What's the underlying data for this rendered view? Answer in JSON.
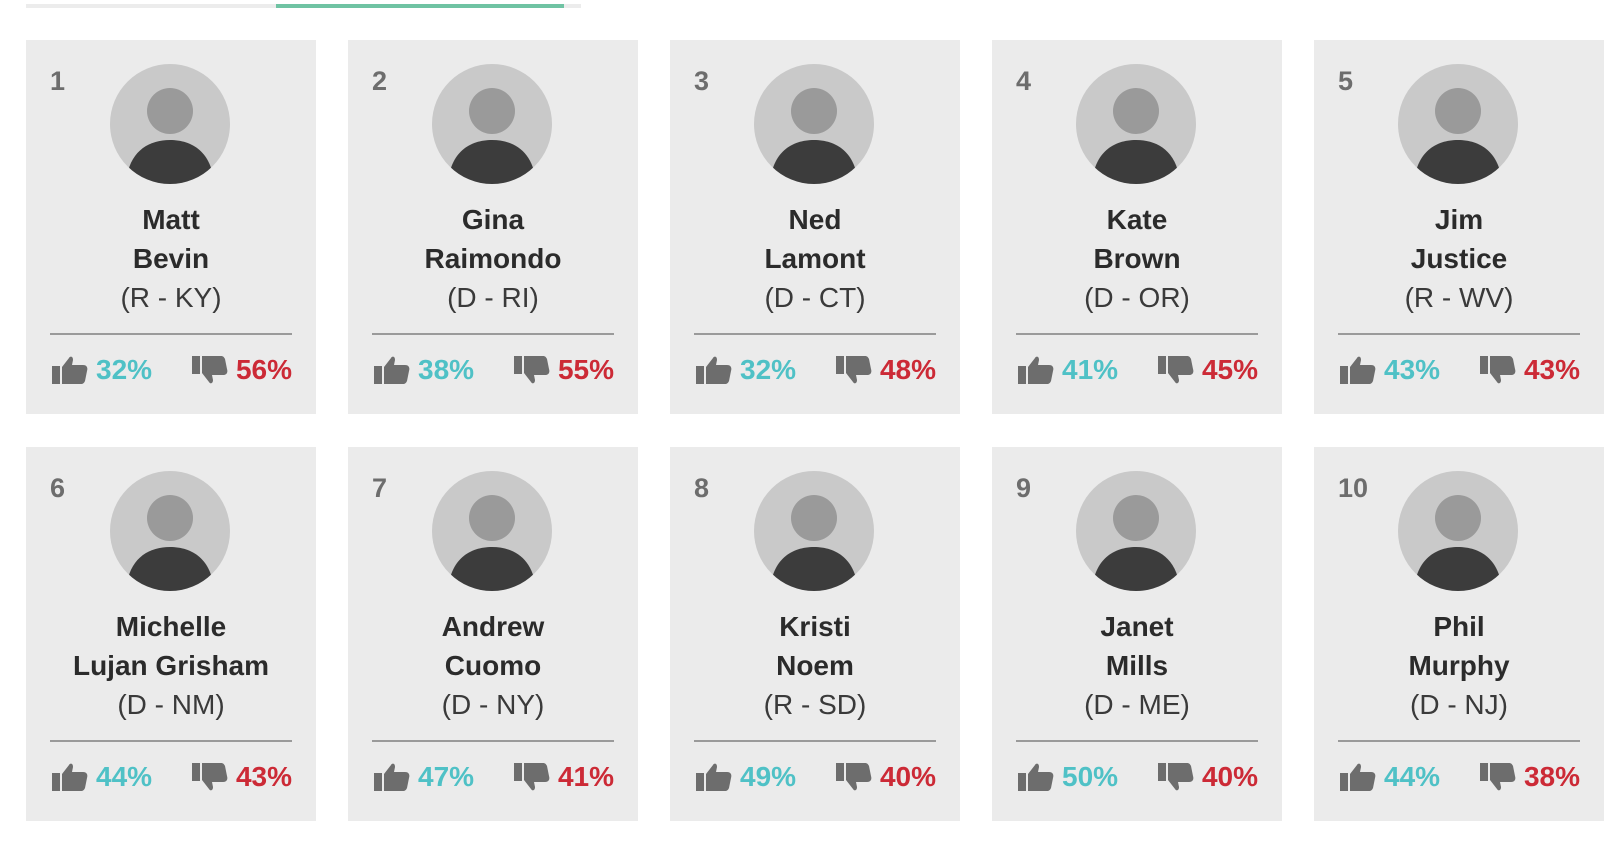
{
  "progress": {
    "fill_fraction": 0.52,
    "colors": {
      "track": "#ececec",
      "fill": "#6fc3a3"
    }
  },
  "colors": {
    "approve": "#4fc1c6",
    "disapprove": "#cc2a36",
    "card": "#ebebeb",
    "icon": "#6d6d6d"
  },
  "icons": {
    "approve": "thumbs-up-icon",
    "disapprove": "thumbs-down-icon"
  },
  "governors": [
    {
      "rank": "1",
      "first": "Matt",
      "last": "Bevin",
      "party": "(R - KY)",
      "approve": "32%",
      "disapprove": "56%"
    },
    {
      "rank": "2",
      "first": "Gina",
      "last": "Raimondo",
      "party": "(D - RI)",
      "approve": "38%",
      "disapprove": "55%"
    },
    {
      "rank": "3",
      "first": "Ned",
      "last": "Lamont",
      "party": "(D - CT)",
      "approve": "32%",
      "disapprove": "48%"
    },
    {
      "rank": "4",
      "first": "Kate",
      "last": "Brown",
      "party": "(D - OR)",
      "approve": "41%",
      "disapprove": "45%"
    },
    {
      "rank": "5",
      "first": "Jim",
      "last": "Justice",
      "party": "(R - WV)",
      "approve": "43%",
      "disapprove": "43%"
    },
    {
      "rank": "6",
      "first": "Michelle",
      "last": "Lujan Grisham",
      "party": "(D - NM)",
      "approve": "44%",
      "disapprove": "43%"
    },
    {
      "rank": "7",
      "first": "Andrew",
      "last": "Cuomo",
      "party": "(D - NY)",
      "approve": "47%",
      "disapprove": "41%"
    },
    {
      "rank": "8",
      "first": "Kristi",
      "last": "Noem",
      "party": "(R - SD)",
      "approve": "49%",
      "disapprove": "40%"
    },
    {
      "rank": "9",
      "first": "Janet",
      "last": "Mills",
      "party": "(D - ME)",
      "approve": "50%",
      "disapprove": "40%"
    },
    {
      "rank": "10",
      "first": "Phil",
      "last": "Murphy",
      "party": "(D - NJ)",
      "approve": "44%",
      "disapprove": "38%"
    }
  ]
}
